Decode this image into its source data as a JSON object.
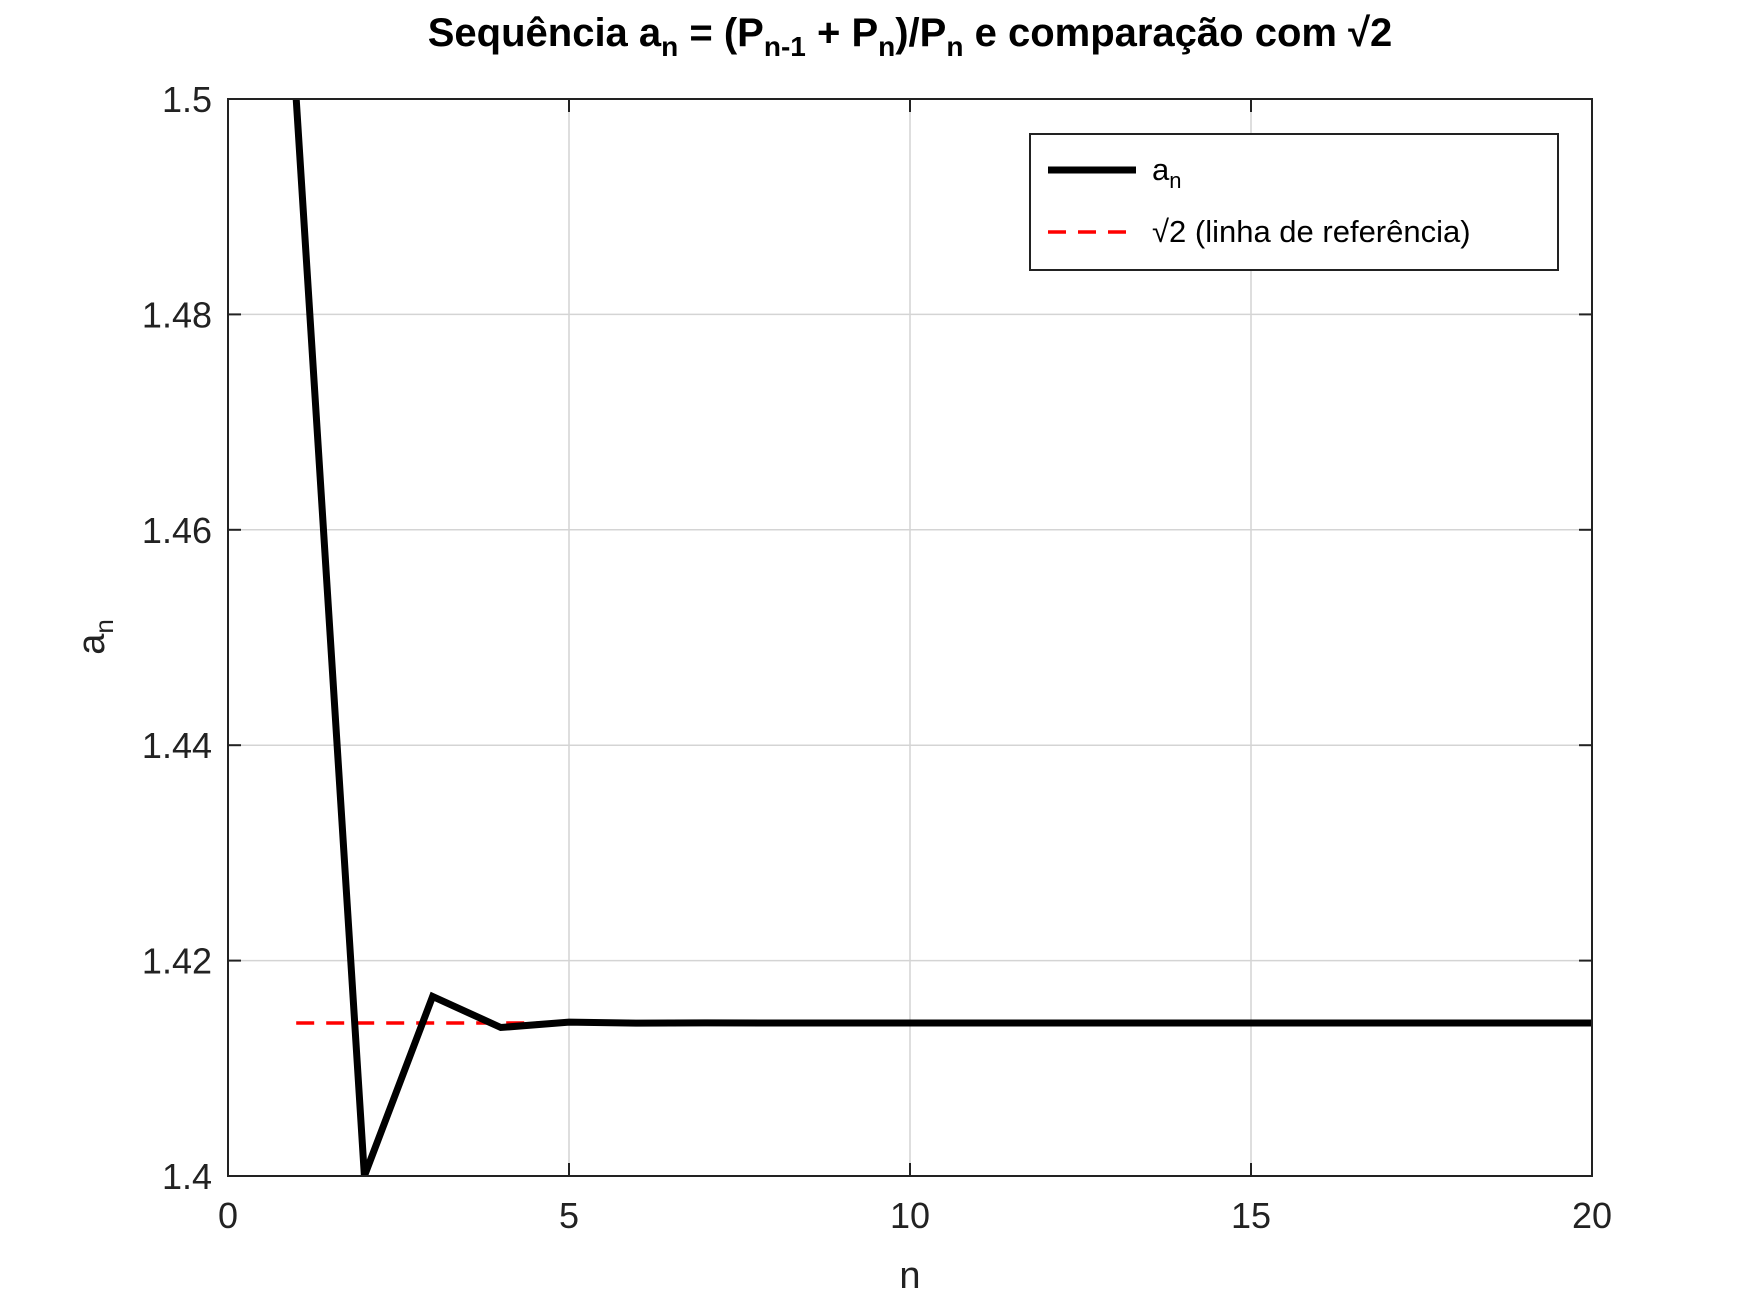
{
  "chart_data": {
    "type": "line",
    "title": {
      "prefix": "Sequência a",
      "sub1": "n",
      "mid1": " = (P",
      "sub2": "n-1",
      "mid2": " + P",
      "sub3": "n",
      "mid3": ")/P",
      "sub4": "n",
      "suffix": " e comparação com √2"
    },
    "xlabel": "n",
    "ylabel": {
      "base": "a",
      "sub": "n"
    },
    "xlim": [
      0,
      20
    ],
    "ylim": [
      1.4,
      1.5
    ],
    "xticks": [
      0,
      5,
      10,
      15,
      20
    ],
    "xtick_labels": [
      "0",
      "5",
      "10",
      "15",
      "20"
    ],
    "yticks": [
      1.4,
      1.42,
      1.44,
      1.46,
      1.48,
      1.5
    ],
    "ytick_labels": [
      "1.4",
      "1.42",
      "1.44",
      "1.46",
      "1.48",
      "1.5"
    ],
    "grid": true,
    "legend_position": "top-right",
    "series": [
      {
        "name": {
          "base": "a",
          "sub": "n"
        },
        "style": "solid",
        "color": "#000000",
        "x": [
          1,
          2,
          3,
          4,
          5,
          6,
          7,
          8,
          9,
          10,
          11,
          12,
          13,
          14,
          15,
          16,
          17,
          18,
          19,
          20
        ],
        "y": [
          1.5,
          1.4,
          1.41667,
          1.41379,
          1.41429,
          1.4142,
          1.41422,
          1.41421,
          1.41421,
          1.41421,
          1.41421,
          1.41421,
          1.41421,
          1.41421,
          1.41421,
          1.41421,
          1.41421,
          1.41421,
          1.41421,
          1.41421
        ]
      },
      {
        "name": {
          "base": "√2 (linha de referência)",
          "sub": ""
        },
        "style": "dashed",
        "color": "#ff0000",
        "x": [
          1,
          20
        ],
        "y": [
          1.41421,
          1.41421
        ]
      }
    ]
  }
}
